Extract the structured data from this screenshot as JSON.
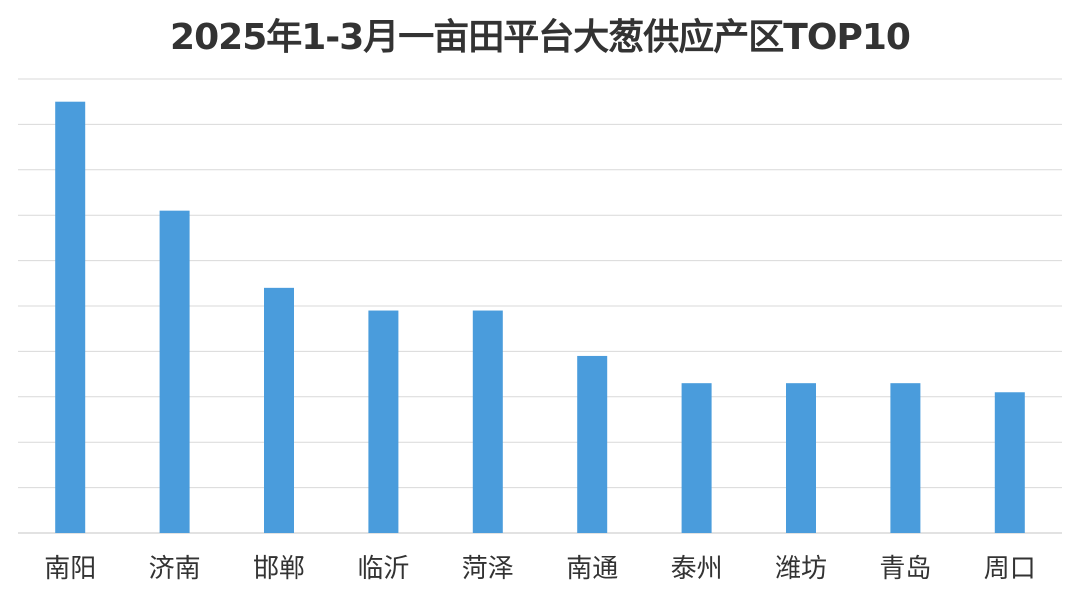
{
  "chart_data": {
    "type": "bar",
    "title": "2025年1-3月一亩田平台大葱供应产区TOP10",
    "xlabel": "",
    "ylabel": "",
    "categories": [
      "南阳",
      "济南",
      "邯郸",
      "临沂",
      "菏泽",
      "南通",
      "泰州",
      "潍坊",
      "青岛",
      "周口"
    ],
    "values": [
      9.5,
      7.1,
      5.4,
      4.9,
      4.9,
      3.9,
      3.3,
      3.3,
      3.3,
      3.1
    ],
    "ylim": [
      0,
      10
    ],
    "grid": true,
    "y_tick_labels_shown": false,
    "legend": "none",
    "colors": {
      "bar": "#4A9CDC",
      "grid": "#D9D9D9",
      "title": "#333333",
      "label": "#333333"
    }
  }
}
